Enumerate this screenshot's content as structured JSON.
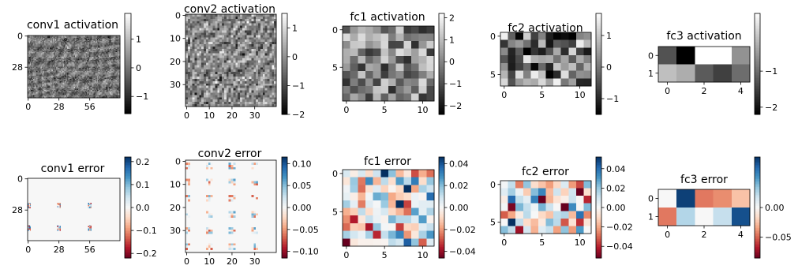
{
  "chart_data": [
    {
      "type": "heatmap",
      "title": "conv1 activation",
      "cmap": "gray",
      "rows": 56,
      "cols": 84,
      "xticks": [
        "0",
        "28",
        "56"
      ],
      "yticks": [
        "0",
        "28"
      ],
      "cbar_ticks": [
        "1",
        "0",
        "−1"
      ],
      "vmin": -1.6,
      "vmax": 1.9,
      "pattern": "conv1act"
    },
    {
      "type": "heatmap",
      "title": "conv2 activation",
      "cmap": "gray",
      "rows": 40,
      "cols": 40,
      "xticks": [
        "0",
        "10",
        "20",
        "30"
      ],
      "yticks": [
        "0",
        "10",
        "20",
        "30"
      ],
      "cbar_ticks": [
        "1",
        "0",
        "−1",
        "−2"
      ],
      "vmin": -2.0,
      "vmax": 1.5,
      "pattern": "conv2act"
    },
    {
      "type": "heatmap",
      "title": "fc1 activation",
      "cmap": "gray",
      "rows": 10,
      "cols": 12,
      "xticks": [
        "0",
        "5",
        "10"
      ],
      "yticks": [
        "0",
        "5"
      ],
      "cbar_ticks": [
        "2",
        "1",
        "0",
        "−1",
        "−2"
      ],
      "vmin": -2.4,
      "vmax": 2.2,
      "pattern": "random"
    },
    {
      "type": "heatmap",
      "title": "fc2 activation",
      "cmap": "gray",
      "rows": 7,
      "cols": 12,
      "xticks": [
        "0",
        "5",
        "10"
      ],
      "yticks": [
        "0",
        "5"
      ],
      "cbar_ticks": [
        "1",
        "0",
        "−1"
      ],
      "vmin": -1.5,
      "vmax": 1.7,
      "pattern": "random"
    },
    {
      "type": "heatmap",
      "title": "fc3 activation",
      "cmap": "gray",
      "rows": 2,
      "cols": 5,
      "xticks": [
        "0",
        "2",
        "4"
      ],
      "yticks": [
        "0",
        "1"
      ],
      "cbar_ticks": [
        "−1",
        "−2"
      ],
      "vmin": -2.2,
      "vmax": 0.6,
      "values": [
        [
          -1.3,
          -2.2,
          0.6,
          0.6,
          -0.6
        ],
        [
          -0.1,
          -0.3,
          -1.2,
          -1.5,
          -1.0
        ]
      ]
    },
    {
      "type": "heatmap",
      "title": "conv1 error",
      "cmap": "RdBu",
      "rows": 56,
      "cols": 84,
      "xticks": [
        "0",
        "28",
        "56"
      ],
      "yticks": [
        "0",
        "28"
      ],
      "cbar_ticks": [
        "0.2",
        "0.1",
        "0.0",
        "−0.1",
        "−0.2"
      ],
      "vmin": -0.22,
      "vmax": 0.22,
      "pattern": "conv1err"
    },
    {
      "type": "heatmap",
      "title": "conv2 error",
      "cmap": "RdBu",
      "rows": 40,
      "cols": 40,
      "xticks": [
        "0",
        "10",
        "20",
        "30"
      ],
      "yticks": [
        "0",
        "10",
        "20",
        "30"
      ],
      "cbar_ticks": [
        "0.10",
        "0.05",
        "0.00",
        "−0.05",
        "−0.10"
      ],
      "vmin": -0.115,
      "vmax": 0.115,
      "pattern": "conv2err"
    },
    {
      "type": "heatmap",
      "title": "fc1 error",
      "cmap": "RdBu",
      "rows": 10,
      "cols": 12,
      "xticks": [
        "0",
        "5",
        "10"
      ],
      "yticks": [
        "0",
        "5"
      ],
      "cbar_ticks": [
        "0.04",
        "0.02",
        "0.00",
        "−0.02",
        "−0.04"
      ],
      "vmin": -0.046,
      "vmax": 0.046,
      "pattern": "errrandom"
    },
    {
      "type": "heatmap",
      "title": "fc2 error",
      "cmap": "RdBu",
      "rows": 7,
      "cols": 12,
      "xticks": [
        "0",
        "5",
        "10"
      ],
      "yticks": [
        "0",
        "5"
      ],
      "cbar_ticks": [
        "0.04",
        "0.02",
        "0.00",
        "−0.02",
        "−0.04"
      ],
      "vmin": -0.052,
      "vmax": 0.052,
      "pattern": "errrandom"
    },
    {
      "type": "heatmap",
      "title": "fc3 error",
      "cmap": "RdBu",
      "rows": 2,
      "cols": 5,
      "xticks": [
        "0",
        "2",
        "4"
      ],
      "yticks": [
        "0",
        "1"
      ],
      "cbar_ticks": [
        "0.00",
        "−0.05"
      ],
      "vmin": -0.085,
      "vmax": 0.085,
      "values": [
        [
          0.0,
          0.08,
          -0.045,
          -0.04,
          -0.025
        ],
        [
          -0.045,
          0.025,
          0.0,
          0.02,
          0.075
        ]
      ]
    }
  ]
}
